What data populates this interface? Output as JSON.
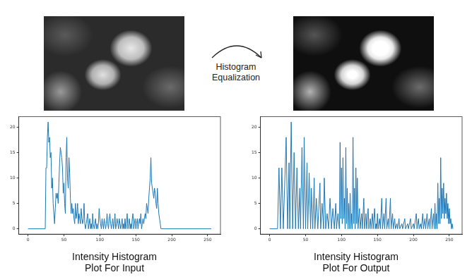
{
  "annotation": "Histogram Equalization",
  "chart_data": [
    {
      "type": "line",
      "title": [
        "Intensity Histogram",
        "Plot For Input"
      ],
      "color": "#1f77b4",
      "grid": false,
      "xlim": [
        -12.75,
        267.75
      ],
      "xticks": [
        0,
        50,
        100,
        150,
        200,
        250
      ],
      "ylim": [
        -1.05,
        22.05
      ],
      "yticks": [
        0,
        5,
        10,
        15,
        20
      ],
      "x": [
        0,
        24,
        25,
        26,
        27,
        28,
        29,
        30,
        31,
        32,
        33,
        34,
        35,
        36,
        37,
        38,
        39,
        40,
        41,
        42,
        43,
        44,
        45,
        46,
        47,
        48,
        49,
        50,
        51,
        52,
        53,
        54,
        55,
        56,
        57,
        58,
        59,
        60,
        61,
        62,
        63,
        64,
        65,
        66,
        67,
        68,
        69,
        70,
        71,
        72,
        73,
        74,
        75,
        76,
        77,
        78,
        79,
        80,
        81,
        82,
        83,
        84,
        85,
        86,
        87,
        88,
        89,
        90,
        91,
        92,
        93,
        94,
        95,
        96,
        97,
        98,
        99,
        100,
        101,
        102,
        103,
        104,
        105,
        106,
        107,
        108,
        109,
        110,
        111,
        112,
        113,
        114,
        115,
        116,
        117,
        118,
        119,
        120,
        121,
        122,
        123,
        124,
        125,
        126,
        127,
        128,
        129,
        130,
        131,
        132,
        133,
        134,
        135,
        136,
        137,
        138,
        139,
        140,
        141,
        142,
        143,
        144,
        145,
        146,
        147,
        148,
        149,
        150,
        151,
        152,
        153,
        154,
        155,
        156,
        157,
        158,
        159,
        160,
        161,
        162,
        163,
        164,
        165,
        166,
        167,
        168,
        169,
        170,
        171,
        172,
        173,
        174,
        175,
        176,
        177,
        178,
        179,
        180,
        181,
        182,
        183,
        184,
        185,
        255
      ],
      "values": [
        0,
        0,
        12,
        12,
        18,
        21,
        17,
        18,
        14,
        15,
        8,
        10,
        5,
        3,
        1,
        4,
        7,
        6,
        7,
        5,
        9,
        13,
        16,
        15,
        14,
        12,
        7,
        9,
        5,
        3,
        14,
        18,
        10,
        8,
        14,
        11,
        6,
        3,
        5,
        3,
        4,
        2,
        1,
        5,
        2,
        3,
        5,
        1,
        3,
        2,
        1,
        4,
        2,
        1,
        2,
        5,
        1,
        0,
        1,
        2,
        3,
        0,
        1,
        2,
        0,
        1,
        0,
        3,
        1,
        0,
        1,
        2,
        0,
        1,
        0,
        1,
        4,
        2,
        1,
        0,
        2,
        1,
        0,
        2,
        1,
        0,
        1,
        3,
        1,
        0,
        2,
        3,
        1,
        0,
        1,
        2,
        0,
        1,
        3,
        0,
        1,
        2,
        1,
        0,
        2,
        1,
        0,
        1,
        2,
        0,
        1,
        0,
        2,
        0,
        1,
        3,
        0,
        1,
        2,
        0,
        1,
        0,
        2,
        3,
        0,
        1,
        2,
        0,
        1,
        2,
        0,
        1,
        2,
        1,
        3,
        0,
        1,
        2,
        1,
        2,
        3,
        2,
        5,
        4,
        3,
        6,
        8,
        10,
        14,
        9,
        8,
        7,
        6,
        8,
        7,
        5,
        4,
        8,
        5,
        3,
        2,
        1,
        0,
        0
      ]
    },
    {
      "type": "line",
      "title": [
        "Intensity Histogram",
        "Plot For Output"
      ],
      "color": "#1f77b4",
      "grid": false,
      "xlim": [
        -12.75,
        267.75
      ],
      "xticks": [
        0,
        50,
        100,
        150,
        200,
        250
      ],
      "ylim": [
        -1.05,
        22.05
      ],
      "yticks": [
        0,
        5,
        10,
        15,
        20
      ],
      "x": [
        0,
        11,
        13,
        15,
        17,
        19,
        23,
        25,
        27,
        28,
        30,
        32,
        34,
        36,
        38,
        40,
        42,
        43,
        45,
        47,
        48,
        50,
        52,
        53,
        55,
        57,
        58,
        60,
        62,
        63,
        65,
        67,
        70,
        71,
        73,
        75,
        76,
        78,
        80,
        82,
        84,
        86,
        88,
        90,
        92,
        93,
        95,
        97,
        98,
        99,
        100,
        101,
        102,
        103,
        104,
        105,
        106,
        107,
        108,
        109,
        110,
        111,
        112,
        113,
        114,
        115,
        116,
        117,
        118,
        119,
        120,
        121,
        122,
        123,
        125,
        126,
        128,
        129,
        131,
        132,
        134,
        135,
        137,
        138,
        140,
        141,
        143,
        144,
        146,
        147,
        148,
        149,
        150,
        151,
        153,
        154,
        156,
        157,
        159,
        160,
        162,
        163,
        165,
        166,
        168,
        169,
        171,
        172,
        174,
        175,
        177,
        178,
        180,
        181,
        184,
        185,
        188,
        189,
        192,
        193,
        196,
        197,
        200,
        201,
        204,
        205,
        207,
        208,
        210,
        211,
        213,
        214,
        216,
        217,
        219,
        220,
        222,
        223,
        225,
        226,
        228,
        229,
        230,
        231,
        232,
        233,
        234,
        235,
        236,
        237,
        238,
        239,
        240,
        241,
        242,
        243,
        244,
        245,
        246,
        247,
        248,
        249,
        250,
        251,
        252,
        253,
        254,
        255
      ],
      "values": [
        0,
        0,
        12,
        0,
        12,
        0,
        18,
        0,
        13,
        0,
        21,
        0,
        15,
        0,
        12,
        0,
        8,
        0,
        16,
        0,
        18,
        0,
        13,
        0,
        11,
        0,
        8,
        0,
        10,
        0,
        6,
        0,
        9,
        0,
        5,
        0,
        10,
        0,
        3,
        0,
        6,
        0,
        4,
        0,
        5,
        0,
        3,
        0,
        17,
        2,
        12,
        1,
        14,
        2,
        6,
        0,
        16,
        1,
        8,
        0,
        5,
        0,
        7,
        0,
        3,
        0,
        18,
        1,
        8,
        0,
        12,
        1,
        10,
        0,
        4,
        0,
        3,
        0,
        6,
        0,
        3,
        0,
        4,
        0,
        2,
        0,
        3,
        0,
        4,
        0,
        1,
        0,
        3,
        0,
        2,
        0,
        6,
        0,
        3,
        0,
        6,
        0,
        2,
        0,
        6,
        0,
        3,
        0,
        2,
        0,
        1,
        0,
        2,
        0,
        1,
        0,
        2,
        0,
        1,
        0,
        2,
        0,
        1,
        0,
        3,
        0,
        2,
        0,
        1,
        0,
        3,
        0,
        2,
        0,
        3,
        0,
        2,
        0,
        4,
        0,
        3,
        0,
        5,
        0,
        3,
        0,
        9,
        1,
        6,
        1,
        14,
        2,
        8,
        3,
        9,
        2,
        6,
        3,
        7,
        2,
        5,
        1,
        4,
        1,
        2,
        0,
        1,
        0
      ]
    }
  ]
}
